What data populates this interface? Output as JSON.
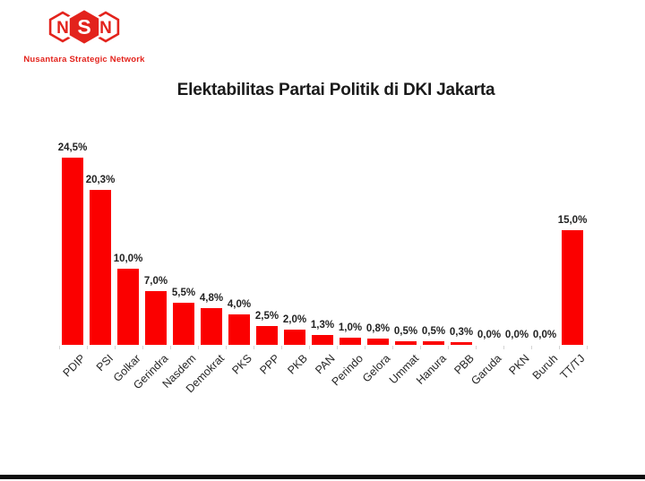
{
  "logo": {
    "letters": [
      "N",
      "S",
      "N"
    ],
    "subtitle": "Nusantara Strategic Network",
    "brand_color": "#e3231c"
  },
  "chart_data": {
    "type": "bar",
    "title": "Elektabilitas Partai Politik di DKI Jakarta",
    "categories": [
      "PDIP",
      "PSI",
      "Golkar",
      "Gerindra",
      "Nasdem",
      "Demokrat",
      "PKS",
      "PPP",
      "PKB",
      "PAN",
      "Perindo",
      "Gelora",
      "Ummat",
      "Hanura",
      "PBB",
      "Garuda",
      "PKN",
      "Buruh",
      "TT/TJ"
    ],
    "values": [
      24.5,
      20.3,
      10.0,
      7.0,
      5.5,
      4.8,
      4.0,
      2.5,
      2.0,
      1.3,
      1.0,
      0.8,
      0.5,
      0.5,
      0.3,
      0.0,
      0.0,
      0.0,
      15.0
    ],
    "value_labels": [
      "24,5%",
      "20,3%",
      "10,0%",
      "7,0%",
      "5,5%",
      "4,8%",
      "4,0%",
      "2,5%",
      "2,0%",
      "1,3%",
      "1,0%",
      "0,8%",
      "0,5%",
      "0,5%",
      "0,3%",
      "0,0%",
      "0,0%",
      "0,0%",
      "15,0%"
    ],
    "unit": "%",
    "bar_color": "#fb0000",
    "ylim": [
      0,
      26
    ],
    "grid": false,
    "legend": false,
    "value_label_position": "outside-end",
    "category_label_rotation": 45
  }
}
